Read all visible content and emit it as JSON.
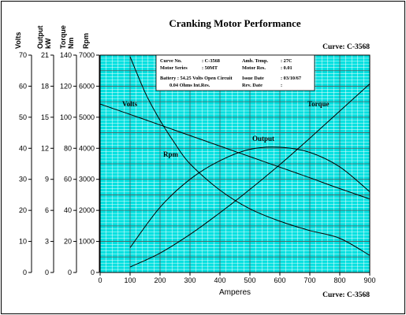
{
  "chart_data": {
    "type": "line",
    "title": "Cranking Motor Performance",
    "curve_id": "Curve: C-3568",
    "xlabel": "Amperes",
    "xlim": [
      0,
      900
    ],
    "xticks": [
      0,
      100,
      200,
      300,
      400,
      500,
      600,
      700,
      800,
      900
    ],
    "axes": [
      {
        "key": "volts",
        "title": [
          "Volts"
        ],
        "lim": [
          0,
          70
        ],
        "ticks": [
          0,
          10,
          20,
          30,
          40,
          50,
          60,
          70
        ]
      },
      {
        "key": "output",
        "title": [
          "Output",
          "kW"
        ],
        "lim": [
          0,
          21
        ],
        "ticks": [
          0,
          3,
          6,
          9,
          12,
          15,
          18,
          21
        ]
      },
      {
        "key": "torque",
        "title": [
          "Torque",
          "Nm"
        ],
        "lim": [
          0,
          140
        ],
        "ticks": [
          0,
          20,
          40,
          60,
          80,
          100,
          120,
          140
        ]
      },
      {
        "key": "rpm",
        "title": [
          "Rpm"
        ],
        "lim": [
          0,
          7000
        ],
        "ticks": [
          0,
          1000,
          2000,
          3000,
          4000,
          5000,
          6000,
          7000
        ]
      }
    ],
    "grid": true,
    "series": [
      {
        "name": "Volts",
        "axis": "volts",
        "x": [
          0,
          100,
          200,
          300,
          400,
          500,
          600,
          700,
          800,
          900
        ],
        "y": [
          54.25,
          50.9,
          47.5,
          44.1,
          40.7,
          37.3,
          33.9,
          30.5,
          27.0,
          23.7
        ]
      },
      {
        "name": "Torque",
        "axis": "torque",
        "x": [
          100,
          200,
          300,
          400,
          500,
          600,
          700,
          800,
          900
        ],
        "y": [
          3.5,
          12.5,
          24.5,
          38.5,
          53.5,
          69.5,
          86.5,
          104,
          121.5
        ]
      },
      {
        "name": "Rpm",
        "axis": "rpm",
        "x": [
          100,
          150,
          200,
          250,
          300,
          400,
          500,
          600,
          700,
          800,
          900
        ],
        "y": [
          6950,
          5800,
          4900,
          4150,
          3500,
          2650,
          2050,
          1650,
          1350,
          1100,
          550
        ]
      },
      {
        "name": "Output",
        "axis": "output",
        "x": [
          100,
          200,
          300,
          400,
          500,
          600,
          700,
          800,
          900
        ],
        "y": [
          2.4,
          6.3,
          9.0,
          10.8,
          11.9,
          12.1,
          11.6,
          10.2,
          7.8
        ]
      }
    ],
    "info_box": [
      [
        "Curve No.",
        ": C-3568",
        "Amb. Temp.",
        ": 27C"
      ],
      [
        "Motor Series",
        ": 50MT",
        "Motor Res.",
        ": 0.01"
      ],
      [
        "Battery : 54.25 Volts Open Circuit",
        "",
        "Issue Date",
        ": 03/10/67"
      ],
      [
        "0.04 Ohms Int.Res.",
        "",
        "Rev. Date",
        ":"
      ]
    ],
    "colors": {
      "plot_bg": "#00e0e0",
      "minor_grid": "#ffffff",
      "major_grid": "#5a5a5a",
      "curve": "#000000"
    }
  }
}
